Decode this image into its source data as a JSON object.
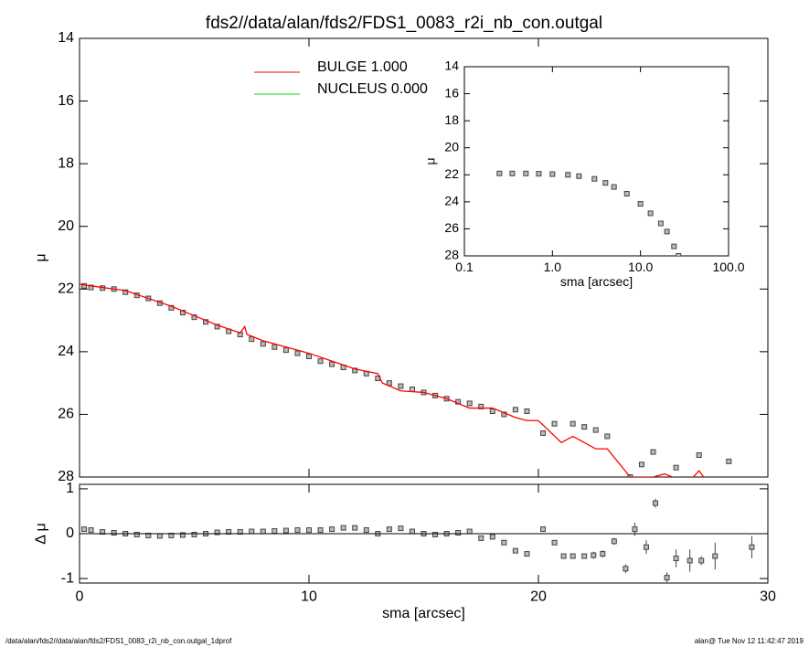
{
  "footer_left": "/data/alan/fds2//data/alan/fds2/FDS1_0083_r2i_nb_con.outgal_1dprof",
  "footer_right": "alan@  Tue Nov 12 11:42:47 2019",
  "chart_data": [
    {
      "type": "scatter",
      "title": "fds2//data/alan/fds2/FDS1_0083_r2i_nb_con.outgal",
      "y_label": "μ",
      "xlim": [
        0,
        30
      ],
      "ylim": [
        28,
        14
      ],
      "xticks": [
        0,
        10,
        20,
        30
      ],
      "x_tick_labels": false,
      "yticks": [
        14,
        16,
        18,
        20,
        22,
        24,
        26,
        28
      ],
      "series": [
        {
          "style": "square",
          "color": "#555555",
          "x": [
            0.2,
            0.5,
            1.0,
            1.5,
            2,
            2.5,
            3,
            3.5,
            4,
            4.5,
            5,
            5.5,
            6,
            6.5,
            7,
            7.5,
            8,
            8.5,
            9,
            9.5,
            10,
            10.5,
            11,
            11.5,
            12,
            12.5,
            13,
            13.5,
            14,
            14.5,
            15,
            15.5,
            16,
            16.5,
            17,
            17.5,
            18,
            18.5,
            19,
            19.5,
            20.2,
            20.7,
            21.5,
            22,
            22.5,
            23,
            24,
            24.5,
            25,
            26,
            27,
            28.3
          ],
          "values": [
            21.9,
            21.95,
            21.97,
            22.0,
            22.1,
            22.2,
            22.3,
            22.45,
            22.6,
            22.75,
            22.9,
            23.05,
            23.2,
            23.35,
            23.45,
            23.6,
            23.75,
            23.85,
            23.95,
            24.05,
            24.15,
            24.3,
            24.4,
            24.5,
            24.6,
            24.7,
            24.85,
            25.0,
            25.1,
            25.2,
            25.3,
            25.4,
            25.5,
            25.6,
            25.65,
            25.75,
            25.9,
            26.0,
            25.85,
            25.9,
            26.6,
            26.3,
            26.3,
            26.4,
            26.5,
            26.7,
            28.0,
            27.6,
            27.2,
            27.7,
            27.3,
            27.5
          ]
        },
        {
          "name": "BULGE  1.000",
          "style": "line",
          "color": "#ff0000",
          "x": [
            0,
            1,
            2,
            3,
            4,
            5,
            6,
            7,
            7.2,
            7.3,
            8,
            9,
            10,
            11,
            12,
            13,
            13.2,
            14,
            15,
            16,
            17,
            18,
            19,
            19.5,
            20,
            21,
            21.5,
            22.5,
            23,
            24,
            25,
            25.5,
            26.5,
            27,
            27.3
          ],
          "values": [
            21.85,
            21.95,
            22.05,
            22.3,
            22.55,
            22.85,
            23.15,
            23.4,
            23.2,
            23.45,
            23.65,
            23.85,
            24.05,
            24.3,
            24.55,
            24.7,
            25.0,
            25.25,
            25.3,
            25.5,
            25.8,
            25.8,
            26.1,
            26.2,
            26.2,
            26.9,
            26.7,
            27.1,
            27.1,
            28.0,
            28.0,
            27.9,
            28.2,
            27.8,
            28.1
          ]
        },
        {
          "name": "NUCLEUS  0.000",
          "style": "line",
          "color": "#00dd00"
        }
      ]
    },
    {
      "type": "scatter",
      "x_label": "sma [arcsec]",
      "y_label": "μ",
      "xlog": true,
      "xlim": [
        0.1,
        100
      ],
      "ylim": [
        28,
        14
      ],
      "xticks": [
        0.1,
        {
          "value": 1,
          "label": "1.0"
        },
        {
          "value": 10,
          "label": "10.0"
        },
        {
          "value": 100,
          "label": "100.0"
        }
      ],
      "yticks": [
        14,
        16,
        18,
        20,
        22,
        24,
        26,
        28
      ],
      "series": [
        {
          "style": "square",
          "color": "#555555",
          "x": [
            0.25,
            0.35,
            0.5,
            0.7,
            1,
            1.5,
            2,
            3,
            4,
            5,
            7,
            10,
            13,
            17,
            20,
            24,
            27
          ],
          "values": [
            21.9,
            21.9,
            21.9,
            21.92,
            21.95,
            22,
            22.1,
            22.3,
            22.6,
            22.9,
            23.4,
            24.15,
            24.85,
            25.6,
            26.2,
            27.3,
            28
          ]
        }
      ]
    },
    {
      "type": "scatter",
      "x_label": "sma [arcsec]",
      "y_label": "Δ μ",
      "xlim": [
        0,
        30
      ],
      "ylim": [
        -1.1,
        1.1
      ],
      "xticks": [
        0,
        10,
        20,
        30
      ],
      "yticks": [
        -1,
        0,
        1
      ],
      "zero_line": true,
      "series": [
        {
          "style": "square",
          "color": "#555555",
          "x": [
            0.2,
            0.5,
            1,
            1.5,
            2,
            2.5,
            3,
            3.5,
            4,
            4.5,
            5,
            5.5,
            6,
            6.5,
            7,
            7.5,
            8,
            8.5,
            9,
            9.5,
            10,
            10.5,
            11,
            11.5,
            12,
            12.5,
            13,
            13.5,
            14,
            14.5,
            15,
            15.5,
            16,
            16.5,
            17,
            17.5,
            18,
            18.5,
            19,
            19.5,
            20.2,
            20.7,
            21.1,
            21.5,
            22,
            22.4,
            22.8,
            23.3,
            23.8,
            24.2,
            24.7,
            25.1,
            25.6,
            26,
            26.6,
            27.1,
            27.7,
            29.3
          ],
          "values": [
            0.1,
            0.08,
            0.04,
            0.02,
            0,
            -0.02,
            -0.04,
            -0.05,
            -0.04,
            -0.03,
            -0.02,
            0,
            0.03,
            0.04,
            0.04,
            0.05,
            0.05,
            0.06,
            0.07,
            0.08,
            0.08,
            0.08,
            0.1,
            0.13,
            0.13,
            0.08,
            0,
            0.1,
            0.12,
            0.05,
            0,
            -0.02,
            0,
            0.02,
            0.05,
            -0.1,
            -0.07,
            -0.2,
            -0.38,
            -0.45,
            0.1,
            -0.2,
            -0.5,
            -0.5,
            -0.5,
            -0.48,
            -0.45,
            -0.17,
            -0.78,
            0.1,
            -0.3,
            0.68,
            -0.98,
            -0.55,
            -0.6,
            -0.6,
            -0.5,
            -0.3
          ],
          "errors": [
            0.02,
            0.02,
            0.02,
            0.02,
            0.02,
            0.02,
            0.02,
            0.02,
            0.02,
            0.02,
            0.02,
            0.02,
            0.02,
            0.02,
            0.02,
            0.02,
            0.02,
            0.02,
            0.02,
            0.02,
            0.02,
            0.02,
            0.02,
            0.03,
            0.03,
            0.03,
            0.03,
            0.03,
            0.03,
            0.03,
            0.03,
            0.03,
            0.03,
            0.03,
            0.03,
            0.03,
            0.04,
            0.05,
            0.05,
            0.05,
            0.05,
            0.05,
            0.05,
            0.05,
            0.05,
            0.08,
            0.08,
            0.08,
            0.1,
            0.15,
            0.15,
            0.1,
            0.12,
            0.2,
            0.25,
            0.1,
            0.3,
            0.25
          ]
        }
      ]
    }
  ]
}
